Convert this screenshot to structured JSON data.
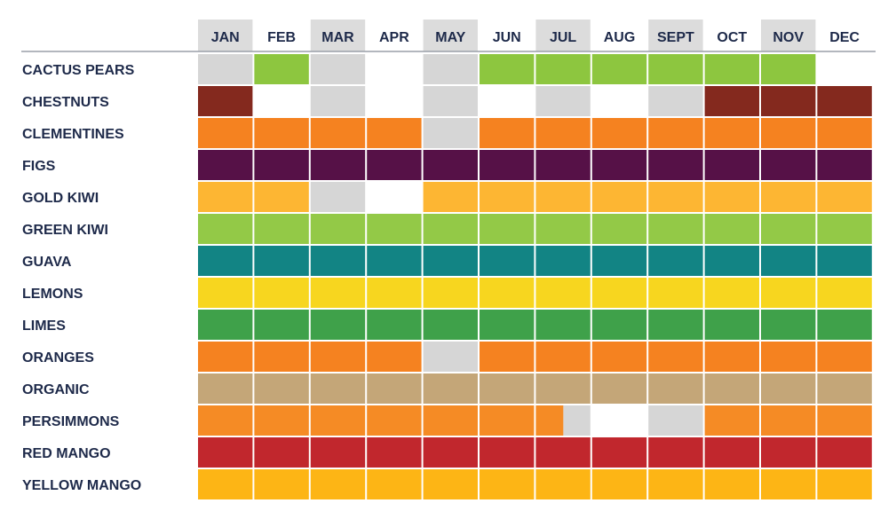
{
  "chart_data": {
    "type": "heatmap",
    "title": "",
    "xlabel": "",
    "ylabel": "",
    "months": [
      "JAN",
      "FEB",
      "MAR",
      "APR",
      "MAY",
      "JUN",
      "JUL",
      "AUG",
      "SEPT",
      "OCT",
      "NOV",
      "DEC"
    ],
    "header_shaded_months": [
      "JAN",
      "MAR",
      "MAY",
      "JUL",
      "SEPT",
      "NOV"
    ],
    "legend": "none",
    "state_codes": {
      "0": "blank",
      "1": "off-season (gray)",
      "2": "in season (fruit color)"
    },
    "colors": {
      "gray": "#d6d6d6",
      "header_gray": "#dcdcdc",
      "text": "#1e2a4a",
      "rule": "#9a9fa8"
    },
    "rows": [
      {
        "name": "CACTUS PEARS",
        "color": "#8dc63f",
        "states": [
          1,
          2,
          1,
          0,
          1,
          2,
          2,
          2,
          2,
          2,
          2,
          0
        ]
      },
      {
        "name": "CHESTNUTS",
        "color": "#84291e",
        "states": [
          2,
          0,
          1,
          0,
          1,
          0,
          1,
          0,
          1,
          2,
          2,
          2
        ]
      },
      {
        "name": "CLEMENTINES",
        "color": "#f58220",
        "states": [
          2,
          2,
          2,
          2,
          1,
          2,
          2,
          2,
          2,
          2,
          2,
          2
        ]
      },
      {
        "name": "FIGS",
        "color": "#561147",
        "states": [
          2,
          2,
          2,
          2,
          2,
          2,
          2,
          2,
          2,
          2,
          2,
          2
        ]
      },
      {
        "name": "GOLD KIWI",
        "color": "#fdb633",
        "states": [
          2,
          2,
          1,
          0,
          2,
          2,
          2,
          2,
          2,
          2,
          2,
          2
        ]
      },
      {
        "name": "GREEN KIWI",
        "color": "#93c947",
        "states": [
          2,
          2,
          2,
          2,
          2,
          2,
          2,
          2,
          2,
          2,
          2,
          2
        ]
      },
      {
        "name": "GUAVA",
        "color": "#128484",
        "states": [
          2,
          2,
          2,
          2,
          2,
          2,
          2,
          2,
          2,
          2,
          2,
          2
        ]
      },
      {
        "name": "LEMONS",
        "color": "#f7d61f",
        "states": [
          2,
          2,
          2,
          2,
          2,
          2,
          2,
          2,
          2,
          2,
          2,
          2
        ]
      },
      {
        "name": "LIMES",
        "color": "#3fa14a",
        "states": [
          2,
          2,
          2,
          2,
          2,
          2,
          2,
          2,
          2,
          2,
          2,
          2
        ]
      },
      {
        "name": "ORANGES",
        "color": "#f58220",
        "states": [
          2,
          2,
          2,
          2,
          1,
          2,
          2,
          2,
          2,
          2,
          2,
          2
        ]
      },
      {
        "name": "ORGANIC",
        "color": "#c4a678",
        "states": [
          2,
          2,
          2,
          2,
          2,
          2,
          2,
          2,
          2,
          2,
          2,
          2
        ]
      },
      {
        "name": "PERSIMMONS",
        "color": "#f58b25",
        "states": [
          2,
          2,
          2,
          2,
          2,
          2,
          2,
          0,
          1,
          2,
          2,
          2
        ],
        "partial": {
          "month": "JUL",
          "split_fraction": 0.5,
          "second_half_state": 1
        }
      },
      {
        "name": "RED MANGO",
        "color": "#c1272d",
        "states": [
          2,
          2,
          2,
          2,
          2,
          2,
          2,
          2,
          2,
          2,
          2,
          2
        ]
      },
      {
        "name": "YELLOW MANGO",
        "color": "#fdb515",
        "states": [
          2,
          2,
          2,
          2,
          2,
          2,
          2,
          2,
          2,
          2,
          2,
          2
        ]
      }
    ]
  }
}
